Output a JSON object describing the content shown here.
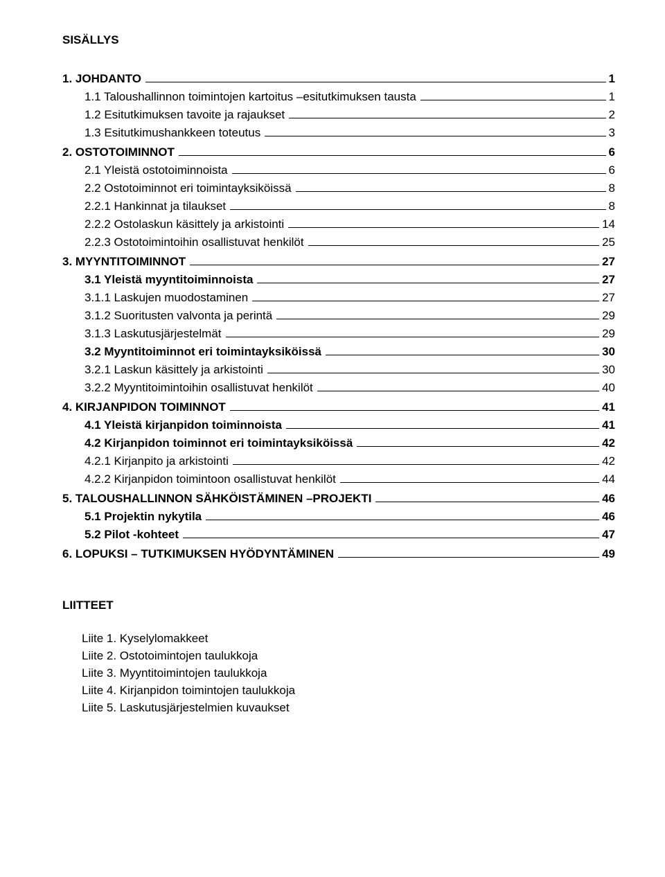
{
  "title": "SISÄLLYS",
  "toc": [
    {
      "num": "1.",
      "text": "JOHDANTO",
      "page": "1",
      "level": 1,
      "bold": true,
      "gap": false
    },
    {
      "num": "1.1",
      "text": "Taloushallinnon toimintojen kartoitus –esitutkimuksen tausta",
      "page": "1",
      "level": 2,
      "bold": false,
      "gap": false
    },
    {
      "num": "1.2",
      "text": "Esitutkimuksen tavoite ja rajaukset",
      "page": "2",
      "level": 2,
      "bold": false,
      "gap": false
    },
    {
      "num": "1.3",
      "text": "Esitutkimushankkeen toteutus",
      "page": "3",
      "level": 2,
      "bold": false,
      "gap": false
    },
    {
      "num": "2.",
      "text": "OSTOTOIMINNOT",
      "page": "6",
      "level": 1,
      "bold": true,
      "gap": true
    },
    {
      "num": "2.1",
      "text": "Yleistä ostotoiminnoista",
      "page": "6",
      "level": 2,
      "bold": false,
      "gap": false
    },
    {
      "num": "2.2",
      "text": "Ostotoiminnot eri toimintayksiköissä",
      "page": "8",
      "level": 2,
      "bold": false,
      "gap": false
    },
    {
      "num": "2.2.1",
      "text": "Hankinnat ja tilaukset",
      "page": "8",
      "level": 3,
      "bold": false,
      "gap": false
    },
    {
      "num": "2.2.2",
      "text": "Ostolaskun käsittely ja arkistointi",
      "page": "14",
      "level": 3,
      "bold": false,
      "gap": false
    },
    {
      "num": "2.2.3",
      "text": "Ostotoimintoihin osallistuvat henkilöt",
      "page": "25",
      "level": 3,
      "bold": false,
      "gap": false
    },
    {
      "num": "3.",
      "text": "MYYNTITOIMINNOT",
      "page": "27",
      "level": 1,
      "bold": true,
      "gap": true
    },
    {
      "num": "3.1",
      "text": "Yleistä myyntitoiminnoista",
      "page": "27",
      "level": 2,
      "bold": true,
      "gap": false
    },
    {
      "num": "3.1.1",
      "text": "Laskujen muodostaminen",
      "page": "27",
      "level": 3,
      "bold": false,
      "gap": false
    },
    {
      "num": "3.1.2",
      "text": "Suoritusten valvonta ja perintä",
      "page": "29",
      "level": 3,
      "bold": false,
      "gap": false
    },
    {
      "num": "3.1.3",
      "text": "Laskutusjärjestelmät",
      "page": "29",
      "level": 3,
      "bold": false,
      "gap": false
    },
    {
      "num": "3.2",
      "text": "Myyntitoiminnot eri toimintayksiköissä",
      "page": "30",
      "level": 2,
      "bold": true,
      "gap": false
    },
    {
      "num": "3.2.1",
      "text": "Laskun käsittely ja arkistointi",
      "page": "30",
      "level": 3,
      "bold": false,
      "gap": false
    },
    {
      "num": "3.2.2",
      "text": "Myyntitoimintoihin osallistuvat henkilöt",
      "page": "40",
      "level": 3,
      "bold": false,
      "gap": false
    },
    {
      "num": "4.",
      "text": "KIRJANPIDON TOIMINNOT",
      "page": "41",
      "level": 1,
      "bold": true,
      "gap": true
    },
    {
      "num": "4.1",
      "text": "Yleistä kirjanpidon toiminnoista",
      "page": "41",
      "level": 2,
      "bold": true,
      "gap": false
    },
    {
      "num": "4.2",
      "text": "Kirjanpidon toiminnot eri toimintayksiköissä",
      "page": "42",
      "level": 2,
      "bold": true,
      "gap": false
    },
    {
      "num": "4.2.1",
      "text": "Kirjanpito ja arkistointi",
      "page": "42",
      "level": 3,
      "bold": false,
      "gap": false
    },
    {
      "num": "4.2.2",
      "text": "Kirjanpidon toimintoon osallistuvat henkilöt",
      "page": "44",
      "level": 3,
      "bold": false,
      "gap": false
    },
    {
      "num": "5.",
      "text": "TALOUSHALLINNON SÄHKÖISTÄMINEN –PROJEKTI",
      "page": "46",
      "level": 1,
      "bold": true,
      "gap": true
    },
    {
      "num": "5.1",
      "text": "Projektin nykytila",
      "page": "46",
      "level": 2,
      "bold": true,
      "gap": false
    },
    {
      "num": "5.2",
      "text": "Pilot -kohteet",
      "page": "47",
      "level": 2,
      "bold": true,
      "gap": false
    },
    {
      "num": "6.",
      "text": "LOPUKSI – TUTKIMUKSEN HYÖDYNTÄMINEN",
      "page": "49",
      "level": 1,
      "bold": true,
      "gap": true
    }
  ],
  "appendix_title": "LIITTEET",
  "appendices": [
    "Liite 1. Kyselylomakkeet",
    "Liite 2. Ostotoimintojen taulukkoja",
    "Liite 3. Myyntitoimintojen taulukkoja",
    "Liite 4. Kirjanpidon toimintojen taulukkoja",
    "Liite 5. Laskutusjärjestelmien kuvaukset"
  ]
}
